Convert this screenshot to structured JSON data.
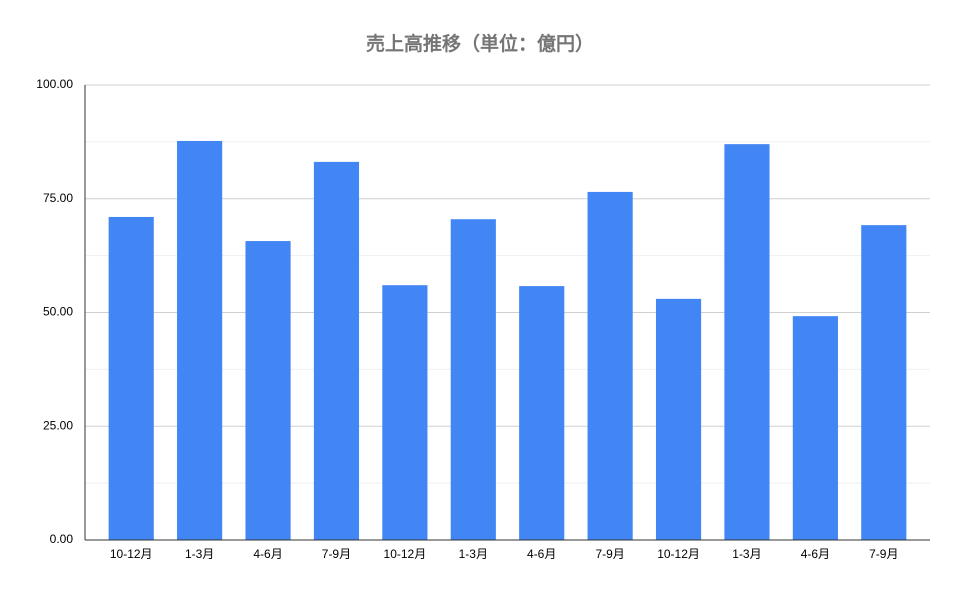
{
  "chart_data": {
    "type": "bar",
    "title": "売上高推移（単位：億円）",
    "categories": [
      "10-12月",
      "1-3月",
      "4-6月",
      "7-9月",
      "10-12月",
      "1-3月",
      "4-6月",
      "7-9月",
      "10-12月",
      "1-3月",
      "4-6月",
      "7-9月"
    ],
    "values": [
      71.0,
      87.7,
      65.7,
      83.1,
      56.0,
      70.5,
      55.8,
      76.5,
      53.0,
      87.0,
      49.2,
      69.2
    ],
    "color": "#4285f4",
    "ylim": [
      0,
      100
    ],
    "yticks": [
      {
        "value": 0,
        "label": "0.00"
      },
      {
        "value": 25,
        "label": "25.00"
      },
      {
        "value": 50,
        "label": "50.00"
      },
      {
        "value": 75,
        "label": "75.00"
      },
      {
        "value": 100,
        "label": "100.00"
      }
    ],
    "minor_yticks": [
      12.5,
      37.5,
      62.5,
      87.5
    ],
    "grid": true
  }
}
